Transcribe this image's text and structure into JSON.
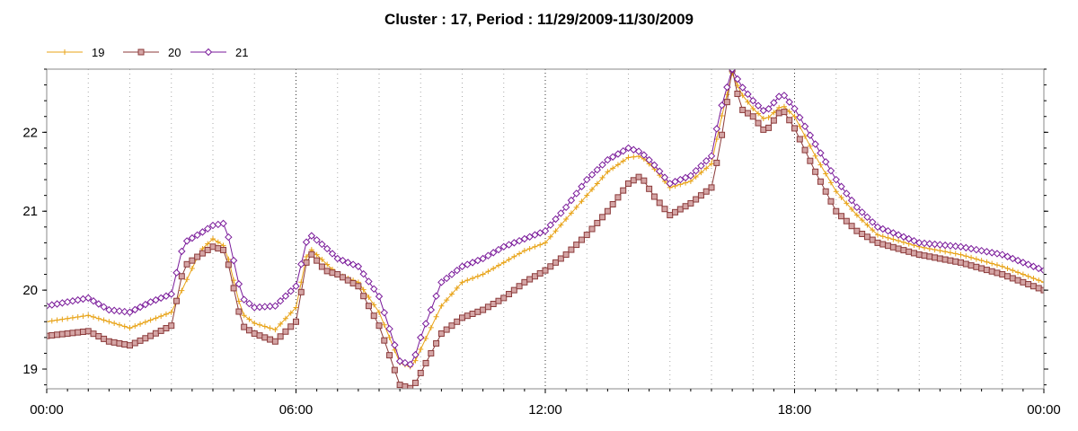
{
  "chart_data": {
    "type": "line",
    "title": "Cluster : 17, Period : 11/29/2009-11/30/2009",
    "xlabel": "",
    "ylabel": "",
    "x_range_hours": [
      0,
      24
    ],
    "ylim": [
      18.75,
      22.8
    ],
    "x_ticks": [
      {
        "hour": 0,
        "label": "00:00"
      },
      {
        "hour": 6,
        "label": "06:00"
      },
      {
        "hour": 12,
        "label": "12:00"
      },
      {
        "hour": 18,
        "label": "18:00"
      },
      {
        "hour": 24,
        "label": "00:00"
      }
    ],
    "y_ticks": [
      {
        "value": 19,
        "label": "19"
      },
      {
        "value": 20,
        "label": "20"
      },
      {
        "value": 21,
        "label": "21"
      },
      {
        "value": 22,
        "label": "22"
      }
    ],
    "grid": "dotted vertical at hour ticks",
    "legend_position": "top-left",
    "series": [
      {
        "name": "19",
        "color": "#e8a317",
        "marker": "plus",
        "hours": [
          0,
          1,
          1.5,
          2,
          2.5,
          3,
          3.3,
          3.7,
          4,
          4.3,
          4.7,
          5,
          5.5,
          6,
          6.3,
          6.7,
          7,
          7.5,
          8,
          8.5,
          8.8,
          9,
          9.5,
          10,
          10.5,
          11,
          11.5,
          12,
          12.5,
          13,
          13.5,
          14,
          14.3,
          14.6,
          15,
          15.5,
          16,
          16.2,
          16.5,
          16.7,
          17,
          17.3,
          17.7,
          18,
          18.5,
          19,
          19.5,
          20,
          21,
          22,
          23,
          24
        ],
        "values": [
          19.6,
          19.68,
          19.6,
          19.52,
          19.62,
          19.72,
          20.05,
          20.5,
          20.65,
          20.55,
          19.7,
          19.58,
          19.5,
          19.78,
          20.55,
          20.35,
          20.2,
          20.1,
          19.72,
          19.08,
          19.02,
          19.25,
          19.8,
          20.1,
          20.2,
          20.35,
          20.5,
          20.6,
          20.9,
          21.2,
          21.5,
          21.68,
          21.7,
          21.55,
          21.3,
          21.38,
          21.6,
          22.1,
          22.75,
          22.5,
          22.3,
          22.15,
          22.35,
          22.2,
          21.7,
          21.25,
          20.95,
          20.7,
          20.55,
          20.45,
          20.3,
          20.1
        ]
      },
      {
        "name": "20",
        "color": "#8b3a3a",
        "marker": "square",
        "hours": [
          0,
          1,
          1.5,
          2,
          2.5,
          3,
          3.3,
          3.7,
          4,
          4.3,
          4.7,
          5,
          5.5,
          6,
          6.3,
          6.7,
          7,
          7.5,
          8,
          8.5,
          8.8,
          9,
          9.5,
          10,
          10.5,
          11,
          11.5,
          12,
          12.5,
          13,
          13.5,
          14,
          14.3,
          14.6,
          15,
          15.5,
          16,
          16.2,
          16.5,
          16.7,
          17,
          17.3,
          17.7,
          18,
          18.5,
          19,
          19.5,
          20,
          21,
          22,
          23,
          24
        ],
        "values": [
          19.42,
          19.48,
          19.35,
          19.3,
          19.42,
          19.55,
          20.3,
          20.45,
          20.55,
          20.5,
          19.55,
          19.45,
          19.35,
          19.6,
          20.5,
          20.25,
          20.2,
          20.05,
          19.55,
          18.8,
          18.75,
          18.95,
          19.45,
          19.65,
          19.75,
          19.9,
          20.1,
          20.25,
          20.45,
          20.7,
          21.0,
          21.35,
          21.45,
          21.2,
          20.95,
          21.1,
          21.3,
          21.8,
          22.8,
          22.3,
          22.2,
          22.0,
          22.3,
          22.05,
          21.5,
          21.0,
          20.75,
          20.6,
          20.45,
          20.35,
          20.2,
          20.0
        ]
      },
      {
        "name": "21",
        "color": "#7a1a9a",
        "marker": "diamond",
        "hours": [
          0,
          1,
          1.5,
          2,
          2.5,
          3,
          3.3,
          3.7,
          4,
          4.3,
          4.7,
          5,
          5.5,
          6,
          6.3,
          6.7,
          7,
          7.5,
          8,
          8.5,
          8.8,
          9,
          9.5,
          10,
          10.5,
          11,
          11.5,
          12,
          12.5,
          13,
          13.5,
          14,
          14.3,
          14.6,
          15,
          15.5,
          16,
          16.2,
          16.5,
          16.7,
          17,
          17.3,
          17.7,
          18,
          18.5,
          19,
          19.5,
          20,
          21,
          22,
          23,
          24
        ],
        "values": [
          19.8,
          19.9,
          19.75,
          19.72,
          19.85,
          19.95,
          20.6,
          20.72,
          20.82,
          20.85,
          19.9,
          19.78,
          19.8,
          20.05,
          20.72,
          20.55,
          20.4,
          20.3,
          19.92,
          19.1,
          19.05,
          19.4,
          20.1,
          20.3,
          20.4,
          20.55,
          20.65,
          20.75,
          21.05,
          21.4,
          21.65,
          21.8,
          21.75,
          21.6,
          21.35,
          21.45,
          21.7,
          22.25,
          22.8,
          22.6,
          22.4,
          22.25,
          22.5,
          22.3,
          21.85,
          21.4,
          21.05,
          20.8,
          20.6,
          20.55,
          20.45,
          20.25
        ]
      }
    ]
  }
}
